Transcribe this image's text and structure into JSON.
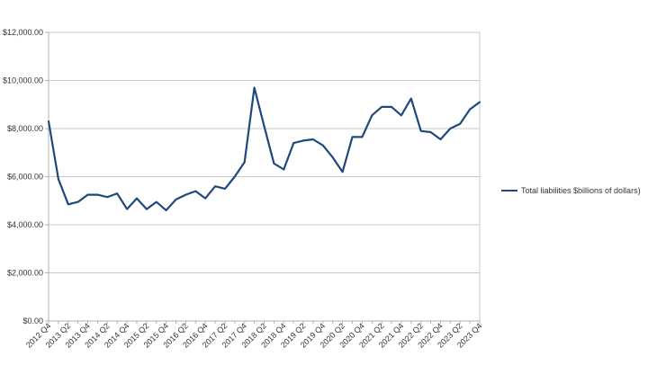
{
  "chart_data": {
    "type": "line",
    "title": "",
    "xlabel": "",
    "ylabel": "",
    "ylim": [
      0,
      12000
    ],
    "y_ticks": [
      0,
      2000,
      4000,
      6000,
      8000,
      10000,
      12000
    ],
    "y_tick_labels": [
      "$0.00",
      "$2,000.00",
      "$4,000.00",
      "$6,000.00",
      "$8,000.00",
      "$10,000.00",
      "$12,000.00"
    ],
    "grid": "horizontal major gridlines",
    "legend_position": "right",
    "line_color": "#1f497d",
    "categories": [
      "2012 Q4",
      "2013 Q1",
      "2013 Q2",
      "2013 Q3",
      "2013 Q4",
      "2014 Q1",
      "2014 Q2",
      "2014 Q3",
      "2014 Q4",
      "2015 Q1",
      "2015 Q2",
      "2015 Q3",
      "2015 Q4",
      "2016 Q1",
      "2016 Q2",
      "2016 Q3",
      "2016 Q4",
      "2017 Q1",
      "2017 Q2",
      "2017 Q3",
      "2017 Q4",
      "2018 Q1",
      "2018 Q2",
      "2018 Q3",
      "2018 Q4",
      "2019 Q1",
      "2019 Q2",
      "2019 Q3",
      "2019 Q4",
      "2020 Q1",
      "2020 Q2",
      "2020 Q3",
      "2020 Q4",
      "2021 Q1",
      "2021 Q2",
      "2021 Q3",
      "2021 Q4",
      "2022 Q1",
      "2022 Q2",
      "2022 Q3",
      "2022 Q4",
      "2023 Q1",
      "2023 Q2",
      "2023 Q3",
      "2023 Q4"
    ],
    "x_tick_labels": [
      "2012 Q4",
      "",
      "2013 Q2",
      "",
      "2013 Q4",
      "",
      "2014 Q2",
      "",
      "2014 Q4",
      "",
      "2015 Q2",
      "",
      "2015 Q4",
      "",
      "2016 Q2",
      "",
      "2016 Q4",
      "",
      "2017 Q2",
      "",
      "2017 Q4",
      "",
      "2018 Q2",
      "",
      "2018 Q4",
      "",
      "2019 Q2",
      "",
      "2019 Q4",
      "",
      "2020 Q2",
      "",
      "2020 Q4",
      "",
      "2021 Q2",
      "",
      "2021 Q4",
      "",
      "2022 Q2",
      "",
      "2022 Q4",
      "",
      "2023 Q2",
      "",
      "2023 Q4"
    ],
    "series": [
      {
        "name": "Total liabilities $billions of dollars)",
        "values": [
          8300,
          5900,
          4850,
          4950,
          5250,
          5250,
          5150,
          5300,
          4650,
          5100,
          4650,
          4950,
          4600,
          5050,
          5250,
          5400,
          5100,
          5600,
          5500,
          6000,
          6600,
          9700,
          8100,
          6550,
          6300,
          7400,
          7500,
          7550,
          7300,
          6800,
          6200,
          7650,
          7650,
          8550,
          8900,
          8900,
          8550,
          9250,
          7900,
          7850,
          7550,
          8000,
          8200,
          8800,
          9100
        ]
      }
    ]
  }
}
